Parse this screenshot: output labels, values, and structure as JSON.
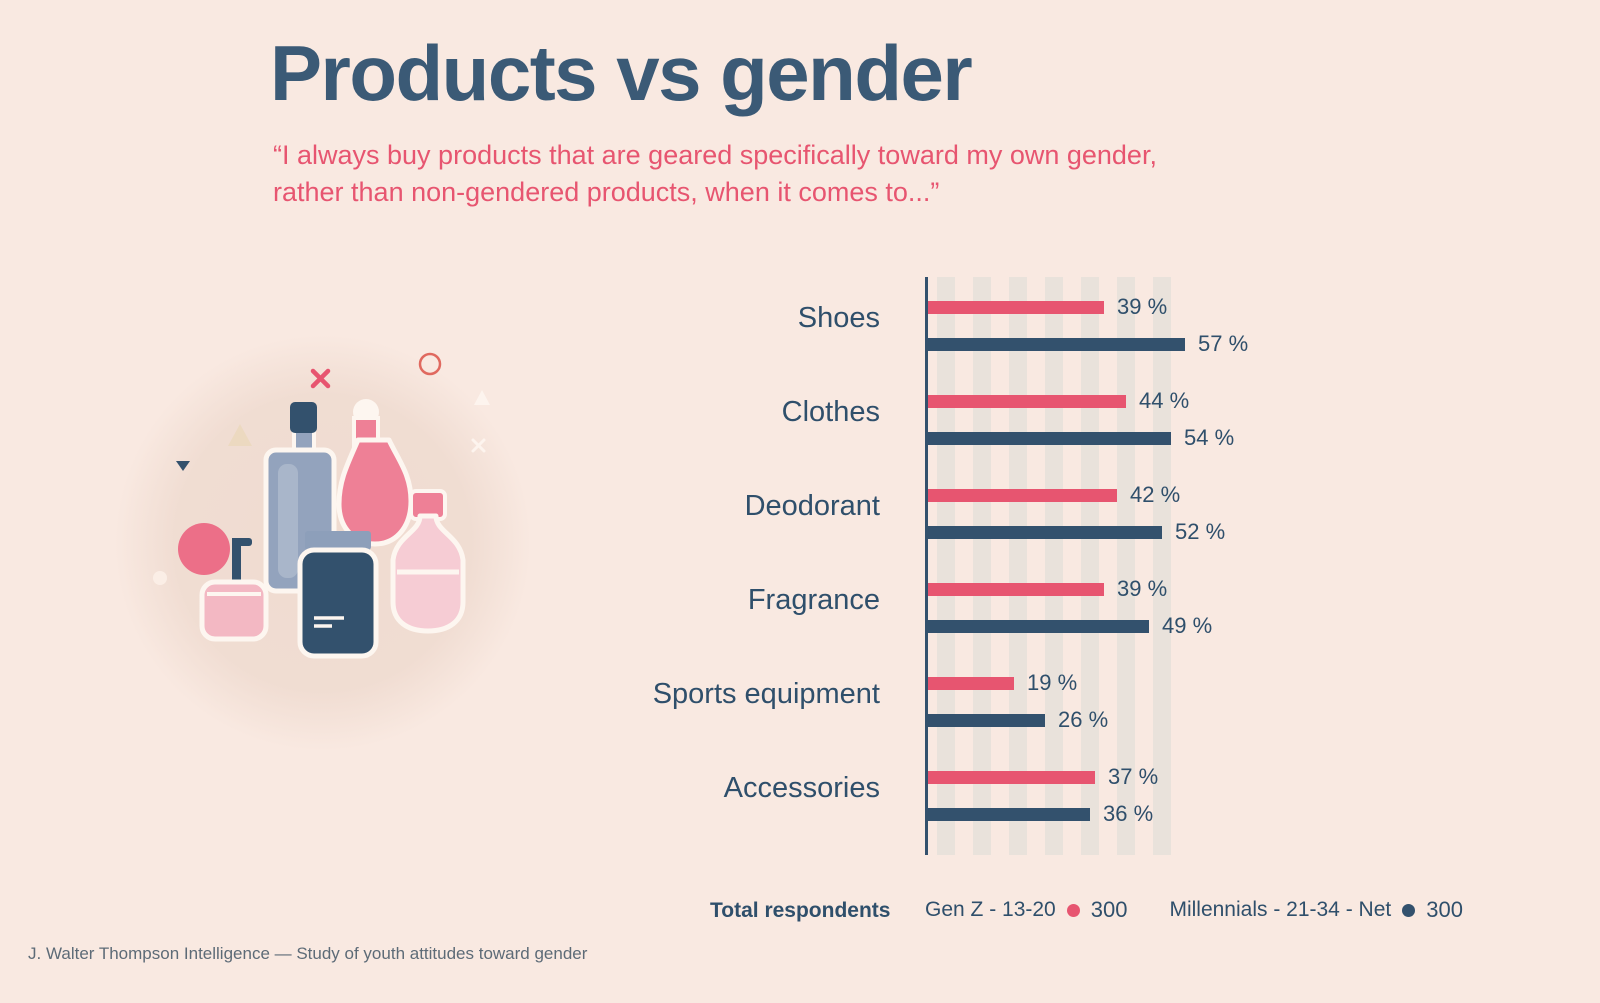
{
  "page": {
    "title": "Products vs gender",
    "subtitle_line1": "“I always buy products that are geared specifically toward my own gender,",
    "subtitle_line2": "rather than non-gendered products, when it comes to...”",
    "footer": "J. Walter Thompson Intelligence — Study of youth attitudes toward gender"
  },
  "legend": {
    "total_label": "Total respondents",
    "series": [
      {
        "label": "Gen Z - 13-20",
        "count": "300",
        "color": "#e75570"
      },
      {
        "label": "Millennials - 21-34 - Net",
        "count": "300",
        "color": "#33516d"
      }
    ]
  },
  "chart_data": {
    "type": "bar",
    "orientation": "horizontal",
    "title": "Products vs gender",
    "xlabel": "",
    "ylabel": "",
    "xlim": [
      0,
      60
    ],
    "grid": "vertical-stripes",
    "legend_position": "bottom",
    "value_suffix": " %",
    "categories": [
      "Shoes",
      "Clothes",
      "Deodorant",
      "Fragrance",
      "Sports equipment",
      "Accessories"
    ],
    "series": [
      {
        "name": "Gen Z - 13-20",
        "color": "#e75570",
        "values": [
          39,
          44,
          42,
          39,
          19,
          37
        ]
      },
      {
        "name": "Millennials - 21-34 - Net",
        "color": "#33516d",
        "values": [
          57,
          54,
          52,
          49,
          26,
          36
        ]
      }
    ]
  },
  "illustration": {
    "name": "cosmetics-and-perfume-bottles",
    "items": [
      "atomizer-bulb",
      "cream-jar",
      "spray-bottle",
      "perfume-bottle",
      "flask-bottle",
      "lotion-bottle"
    ]
  },
  "colors": {
    "background": "#f9e9e1",
    "navy": "#33516d",
    "pink": "#e75570",
    "title_navy": "#3b5a76",
    "stripe": "#e9e2db"
  }
}
